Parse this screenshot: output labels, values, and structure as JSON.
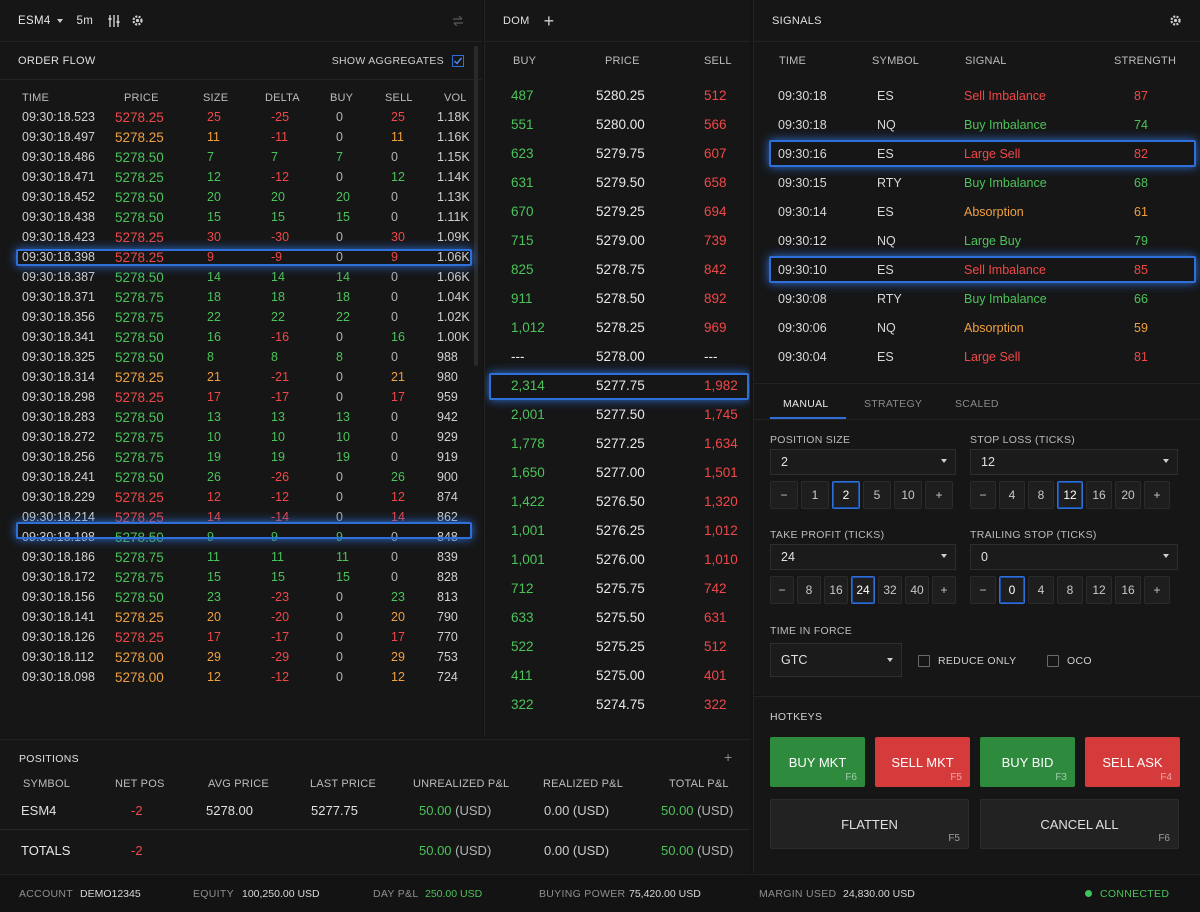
{
  "toolbar": {
    "symbol": "ESM4",
    "interval": "5m"
  },
  "order_flow": {
    "title": "ORDER FLOW",
    "show_aggregates": "SHOW AGGREGATES",
    "headers": [
      "TIME",
      "PRICE",
      "SIZE",
      "DELTA",
      "BUY",
      "SELL",
      "VOL"
    ],
    "rows": [
      [
        "09:30:18.523",
        "5278.25",
        "25",
        "-25",
        "0",
        "25",
        "1.18K",
        "red"
      ],
      [
        "09:30:18.497",
        "5278.25",
        "11",
        "-11",
        "0",
        "11",
        "1.16K",
        "org"
      ],
      [
        "09:30:18.486",
        "5278.50",
        "7",
        "7",
        "7",
        "0",
        "1.15K",
        "grn"
      ],
      [
        "09:30:18.471",
        "5278.25",
        "12",
        "-12",
        "0",
        "12",
        "1.14K",
        "grn"
      ],
      [
        "09:30:18.452",
        "5278.50",
        "20",
        "20",
        "20",
        "0",
        "1.13K",
        "grn"
      ],
      [
        "09:30:18.438",
        "5278.50",
        "15",
        "15",
        "15",
        "0",
        "1.11K",
        "grn"
      ],
      [
        "09:30:18.423",
        "5278.25",
        "30",
        "-30",
        "0",
        "30",
        "1.09K",
        "red"
      ],
      [
        "09:30:18.398",
        "5278.25",
        "9",
        "-9",
        "0",
        "9",
        "1.06K",
        "red"
      ],
      [
        "09:30:18.387",
        "5278.50",
        "14",
        "14",
        "14",
        "0",
        "1.06K",
        "grn"
      ],
      [
        "09:30:18.371",
        "5278.75",
        "18",
        "18",
        "18",
        "0",
        "1.04K",
        "grn"
      ],
      [
        "09:30:18.356",
        "5278.75",
        "22",
        "22",
        "22",
        "0",
        "1.02K",
        "grn"
      ],
      [
        "09:30:18.341",
        "5278.50",
        "16",
        "-16",
        "0",
        "16",
        "1.00K",
        "grn"
      ],
      [
        "09:30:18.325",
        "5278.50",
        "8",
        "8",
        "8",
        "0",
        "988",
        "grn"
      ],
      [
        "09:30:18.314",
        "5278.25",
        "21",
        "-21",
        "0",
        "21",
        "980",
        "org"
      ],
      [
        "09:30:18.298",
        "5278.25",
        "17",
        "-17",
        "0",
        "17",
        "959",
        "red"
      ],
      [
        "09:30:18.283",
        "5278.50",
        "13",
        "13",
        "13",
        "0",
        "942",
        "grn"
      ],
      [
        "09:30:18.272",
        "5278.75",
        "10",
        "10",
        "10",
        "0",
        "929",
        "grn"
      ],
      [
        "09:30:18.256",
        "5278.75",
        "19",
        "19",
        "19",
        "0",
        "919",
        "grn"
      ],
      [
        "09:30:18.241",
        "5278.50",
        "26",
        "-26",
        "0",
        "26",
        "900",
        "grn"
      ],
      [
        "09:30:18.229",
        "5278.25",
        "12",
        "-12",
        "0",
        "12",
        "874",
        "red"
      ],
      [
        "09:30:18.214",
        "5278.25",
        "14",
        "-14",
        "0",
        "14",
        "862",
        "red"
      ],
      [
        "09:30:18.198",
        "5278.50",
        "9",
        "9",
        "9",
        "0",
        "848",
        "grn"
      ],
      [
        "09:30:18.186",
        "5278.75",
        "11",
        "11",
        "11",
        "0",
        "839",
        "grn"
      ],
      [
        "09:30:18.172",
        "5278.75",
        "15",
        "15",
        "15",
        "0",
        "828",
        "grn"
      ],
      [
        "09:30:18.156",
        "5278.50",
        "23",
        "-23",
        "0",
        "23",
        "813",
        "grn"
      ],
      [
        "09:30:18.141",
        "5278.25",
        "20",
        "-20",
        "0",
        "20",
        "790",
        "org"
      ],
      [
        "09:30:18.126",
        "5278.25",
        "17",
        "-17",
        "0",
        "17",
        "770",
        "red"
      ],
      [
        "09:30:18.112",
        "5278.00",
        "29",
        "-29",
        "0",
        "29",
        "753",
        "org"
      ],
      [
        "09:30:18.098",
        "5278.00",
        "12",
        "-12",
        "0",
        "12",
        "724",
        "org"
      ]
    ]
  },
  "dom": {
    "title": "DOM",
    "headers": [
      "BUY",
      "PRICE",
      "SELL"
    ],
    "rows": [
      [
        "487",
        "5280.25",
        "512"
      ],
      [
        "551",
        "5280.00",
        "566"
      ],
      [
        "623",
        "5279.75",
        "607"
      ],
      [
        "631",
        "5279.50",
        "658"
      ],
      [
        "670",
        "5279.25",
        "694"
      ],
      [
        "715",
        "5279.00",
        "739"
      ],
      [
        "825",
        "5278.75",
        "842"
      ],
      [
        "911",
        "5278.50",
        "892"
      ],
      [
        "1,012",
        "5278.25",
        "969"
      ],
      [
        "---",
        "5278.00",
        "---"
      ],
      [
        "2,314",
        "5277.75",
        "1,982"
      ],
      [
        "2,001",
        "5277.50",
        "1,745"
      ],
      [
        "1,778",
        "5277.25",
        "1,634"
      ],
      [
        "1,650",
        "5277.00",
        "1,501"
      ],
      [
        "1,422",
        "5276.50",
        "1,320"
      ],
      [
        "1,001",
        "5276.25",
        "1,012"
      ],
      [
        "1,001",
        "5276.00",
        "1,010"
      ],
      [
        "712",
        "5275.75",
        "742"
      ],
      [
        "633",
        "5275.50",
        "631"
      ],
      [
        "522",
        "5275.25",
        "512"
      ],
      [
        "411",
        "5275.00",
        "401"
      ],
      [
        "322",
        "5274.75",
        "322"
      ]
    ]
  },
  "signals": {
    "title": "SIGNALS",
    "headers": [
      "TIME",
      "SYMBOL",
      "SIGNAL",
      "STRENGTH"
    ],
    "rows": [
      [
        "09:30:18",
        "ES",
        "Sell Imbalance",
        "87",
        "red"
      ],
      [
        "09:30:18",
        "NQ",
        "Buy Imbalance",
        "74",
        "grn"
      ],
      [
        "09:30:16",
        "ES",
        "Large Sell",
        "82",
        "red"
      ],
      [
        "09:30:15",
        "RTY",
        "Buy Imbalance",
        "68",
        "grn"
      ],
      [
        "09:30:14",
        "ES",
        "Absorption",
        "61",
        "org"
      ],
      [
        "09:30:12",
        "NQ",
        "Large Buy",
        "79",
        "grn"
      ],
      [
        "09:30:10",
        "ES",
        "Sell Imbalance",
        "85",
        "red"
      ],
      [
        "09:30:08",
        "RTY",
        "Buy Imbalance",
        "66",
        "grn"
      ],
      [
        "09:30:06",
        "NQ",
        "Absorption",
        "59",
        "org"
      ],
      [
        "09:30:04",
        "ES",
        "Large Sell",
        "81",
        "red"
      ]
    ]
  },
  "order_entry": {
    "tabs": [
      "MANUAL",
      "STRATEGY",
      "SCALED"
    ],
    "position_size": {
      "label": "POSITION SIZE",
      "value": "2",
      "steps": [
        "−",
        "1",
        "2",
        "5",
        "10",
        "+"
      ]
    },
    "stop_loss": {
      "label": "STOP LOSS (TICKS)",
      "value": "12",
      "steps": [
        "−",
        "4",
        "8",
        "12",
        "16",
        "20",
        "+"
      ]
    },
    "take_profit": {
      "label": "TAKE PROFIT (TICKS)",
      "value": "24",
      "steps": [
        "−",
        "8",
        "16",
        "24",
        "32",
        "40",
        "+"
      ]
    },
    "trailing_stop": {
      "label": "TRAILING STOP (TICKS)",
      "value": "0",
      "steps": [
        "−",
        "0",
        "4",
        "8",
        "12",
        "16",
        "+"
      ]
    },
    "tif": {
      "label": "TIME IN FORCE",
      "value": "GTC"
    },
    "reduce_only": "REDUCE ONLY",
    "oco": "OCO"
  },
  "hotkeys": {
    "title": "HOTKEYS",
    "buy_mkt": "BUY MKT",
    "buy_mkt_key": "F6",
    "sell_mkt": "SELL MKT",
    "sell_mkt_key": "F5",
    "buy_bid": "BUY BID",
    "buy_bid_key": "F3",
    "sell_ask": "SELL ASK",
    "sell_ask_key": "F4",
    "flatten": "FLATTEN",
    "flatten_key": "F5",
    "cancel_all": "CANCEL ALL",
    "cancel_all_key": "F6"
  },
  "positions": {
    "title": "POSITIONS",
    "headers": [
      "SYMBOL",
      "NET POS",
      "AVG PRICE",
      "LAST PRICE",
      "UNREALIZED P&L",
      "REALIZED P&L",
      "TOTAL P&L"
    ],
    "row": {
      "symbol": "ESM4",
      "net": "-2",
      "avg": "5278.00",
      "last": "5277.75",
      "unreal": "50.00",
      "unreal_ccy": "(USD)",
      "real": "0.00 (USD)",
      "total": "50.00",
      "total_ccy": "(USD)"
    },
    "totals": {
      "label": "TOTALS",
      "net": "-2",
      "unreal": "50.00",
      "unreal_ccy": "(USD)",
      "real": "0.00 (USD)",
      "total": "50.00",
      "total_ccy": "(USD)"
    }
  },
  "status": {
    "account_label": "ACCOUNT",
    "account": "DEMO12345",
    "equity_label": "EQUITY",
    "equity": "100,250.00 USD",
    "daypl_label": "DAY P&L",
    "daypl": "250.00 USD",
    "bp_label": "BUYING POWER",
    "bp": "75,420.00 USD",
    "margin_label": "MARGIN USED",
    "margin": "24,830.00 USD",
    "conn": "CONNECTED"
  },
  "colors": {
    "buy": "#2e8b3e",
    "sell": "#d53b3b",
    "accent": "#2f6fd8"
  }
}
